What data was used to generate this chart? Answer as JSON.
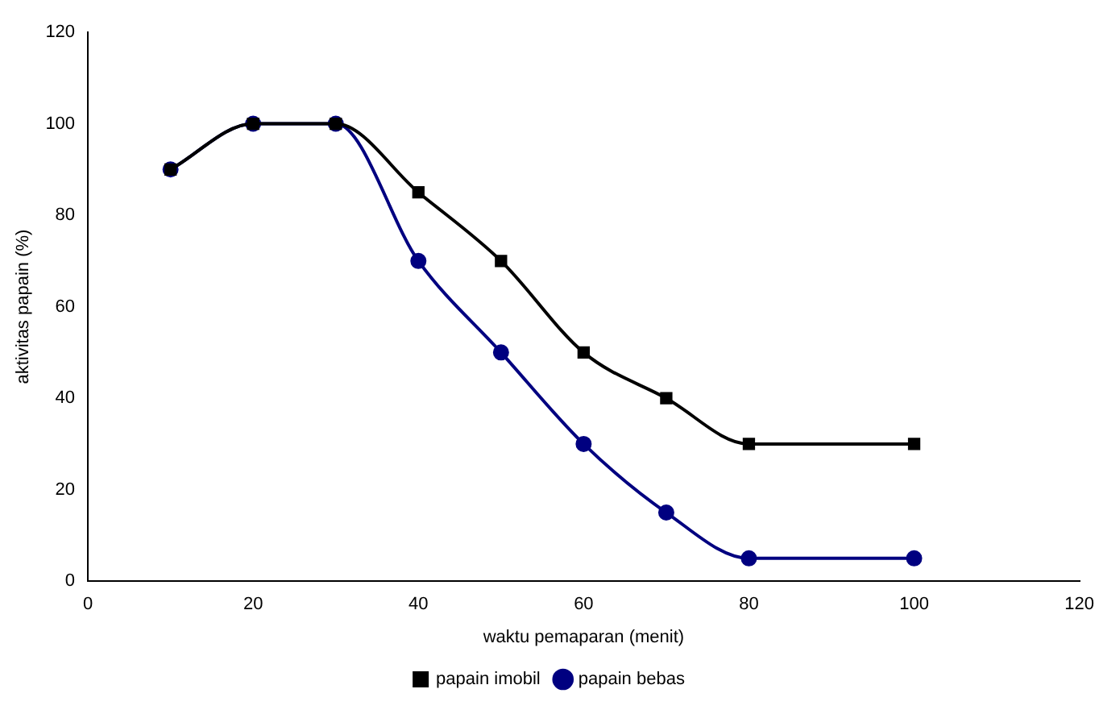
{
  "chart_data": {
    "type": "line",
    "xlabel": "waktu pemaparan (menit)",
    "ylabel": "aktivitas papain (%)",
    "xlim": [
      0,
      120
    ],
    "xticks": [
      0,
      20,
      40,
      60,
      80,
      100,
      120
    ],
    "ylim": [
      0,
      120
    ],
    "yticks": [
      0,
      20,
      40,
      60,
      80,
      100,
      120
    ],
    "grid": false,
    "legend": "bottom",
    "line_style": "solid",
    "series": [
      {
        "name": "papain imobil",
        "color": "#000000",
        "marker": "square",
        "x": [
          10,
          20,
          30,
          40,
          50,
          60,
          70,
          80,
          100
        ],
        "values": [
          90,
          100,
          100,
          85,
          70,
          50,
          40,
          30,
          30
        ]
      },
      {
        "name": "papain bebas",
        "color": "#000080",
        "marker": "circle",
        "x": [
          10,
          20,
          30,
          40,
          50,
          60,
          70,
          80,
          100
        ],
        "values": [
          90,
          100,
          100,
          70,
          50,
          30,
          15,
          5,
          5
        ]
      }
    ]
  }
}
